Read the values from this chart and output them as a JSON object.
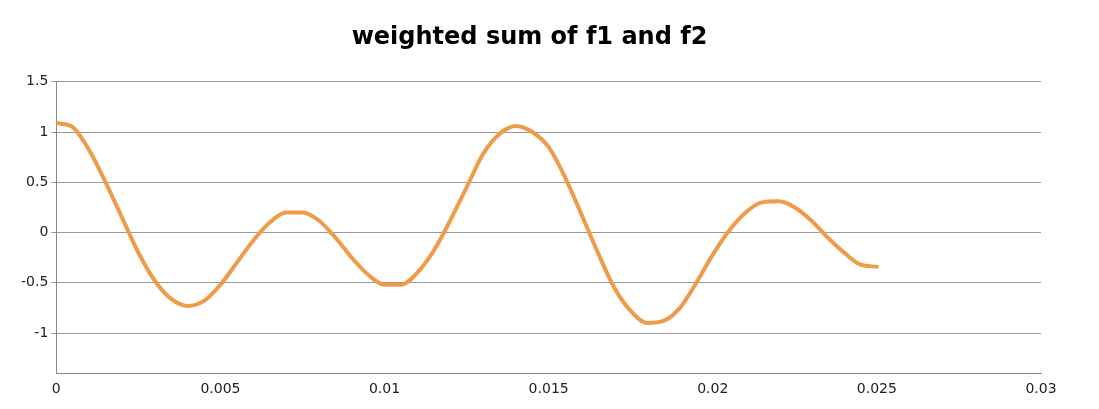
{
  "chart_data": {
    "type": "line",
    "title": "weighted sum of f1 and f2",
    "xlim": [
      0,
      0.03
    ],
    "xticks": [
      0,
      0.005,
      0.01,
      0.015,
      0.02,
      0.025,
      0.03
    ],
    "ylim": [
      -1.4,
      1.5
    ],
    "yticks": [
      -1,
      -0.5,
      0,
      0.5,
      1,
      1.5
    ],
    "grid": "y",
    "marker": "none",
    "line_style": "solid",
    "series": [
      {
        "color": "#ee9b4a",
        "x": [
          0,
          0.0005,
          0.001,
          0.0015,
          0.002,
          0.0025,
          0.003,
          0.0035,
          0.004,
          0.0045,
          0.005,
          0.0055,
          0.006,
          0.0065,
          0.007,
          0.0075,
          0.008,
          0.0085,
          0.009,
          0.0095,
          0.01,
          0.0105,
          0.011,
          0.0115,
          0.012,
          0.0125,
          0.013,
          0.0135,
          0.014,
          0.0145,
          0.015,
          0.0155,
          0.016,
          0.0165,
          0.017,
          0.0175,
          0.018,
          0.0185,
          0.019,
          0.0195,
          0.02,
          0.0205,
          0.021,
          0.0215,
          0.022,
          0.0225,
          0.023,
          0.0235,
          0.024,
          0.0245,
          0.025
        ],
        "values": [
          1.09,
          1.05,
          0.82,
          0.5,
          0.15,
          -0.2,
          -0.48,
          -0.66,
          -0.73,
          -0.68,
          -0.52,
          -0.3,
          -0.08,
          0.1,
          0.2,
          0.2,
          0.12,
          -0.05,
          -0.25,
          -0.42,
          -0.52,
          -0.52,
          -0.4,
          -0.18,
          0.12,
          0.45,
          0.78,
          0.98,
          1.06,
          1.0,
          0.85,
          0.55,
          0.18,
          -0.2,
          -0.55,
          -0.78,
          -0.9,
          -0.88,
          -0.75,
          -0.5,
          -0.22,
          0.02,
          0.2,
          0.3,
          0.31,
          0.25,
          0.12,
          -0.05,
          -0.2,
          -0.32,
          -0.34
        ]
      }
    ]
  }
}
